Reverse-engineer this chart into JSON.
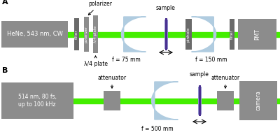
{
  "bg": "#ffffff",
  "gray": "#8c8c8c",
  "dgray": "#6a6a6a",
  "green": "#44ee00",
  "blue": "#b0cce0",
  "pdark": "#4a3090",
  "plight": "#9090cc",
  "white": "#ffffff",
  "black": "#000000",
  "laser_A": "HeNe, 543 nm, CW",
  "laser_B": "514 nm, 80 fs,\nup to 100 kHz",
  "f75": "f = 75 mm",
  "f150": "f = 150 mm",
  "f500": "f = 500 mm",
  "lbl_polarizer": "polarizer",
  "lbl_quarter": "λ/4 plate",
  "lbl_sample": "sample",
  "lbl_pinhole": "pinhole",
  "lbl_filter": "filter",
  "lbl_pmt": "PMT",
  "lbl_attenuator": "attenuator",
  "lbl_camera": "camera",
  "lbl_A": "A",
  "lbl_B": "B"
}
